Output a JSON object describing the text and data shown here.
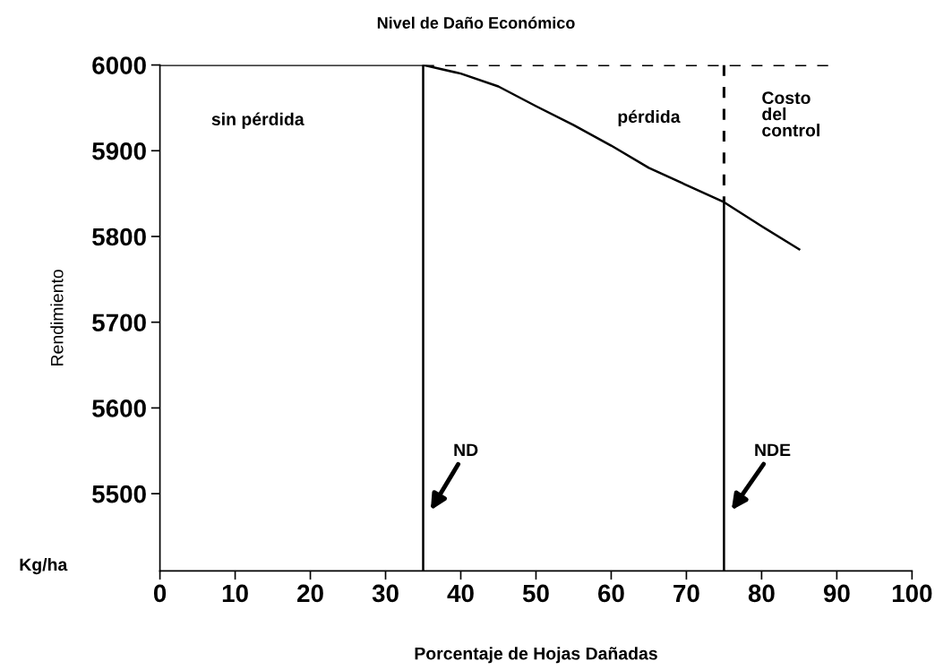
{
  "chart_data": {
    "type": "line",
    "title": "Nivel de Daño Económico",
    "xlabel": "Porcentaje de Hojas Dañadas",
    "ylabel": "Rendimiento",
    "series": [
      {
        "color": "#000000",
        "x": [
          0,
          35,
          40,
          45,
          50,
          55,
          60,
          65,
          70,
          75,
          80,
          85
        ],
        "values": [
          6000,
          6000,
          5990,
          5975,
          5952,
          5930,
          5906,
          5880,
          5860,
          5840,
          5812,
          5785
        ]
      },
      {
        "color": "#000000",
        "line_style": "dashed",
        "x": [
          35,
          90
        ],
        "values": [
          6000,
          6000
        ]
      },
      {
        "color": "#000000",
        "line_style": "dashed",
        "x": [
          75,
          75
        ],
        "values": [
          6000,
          5840
        ]
      },
      {
        "color": "#000000",
        "x": [
          35,
          35
        ],
        "values": [
          5410,
          6000
        ]
      },
      {
        "color": "#000000",
        "x": [
          75,
          75
        ],
        "values": [
          5410,
          5840
        ]
      }
    ],
    "xlim": [
      0,
      100
    ],
    "xticks": [
      0,
      10,
      20,
      30,
      40,
      50,
      60,
      70,
      80,
      90,
      100
    ],
    "ylim": [
      5410,
      6000
    ],
    "yticks": [
      5500,
      5600,
      5700,
      5800,
      5900,
      6000
    ],
    "grid": false,
    "legend": false,
    "marker": "none",
    "line_style": "solid",
    "annotations": [
      "sin pérdida",
      "pérdida",
      "Costo\ndel\ncontrol",
      "ND",
      "NDE",
      "Kg/ha"
    ]
  }
}
